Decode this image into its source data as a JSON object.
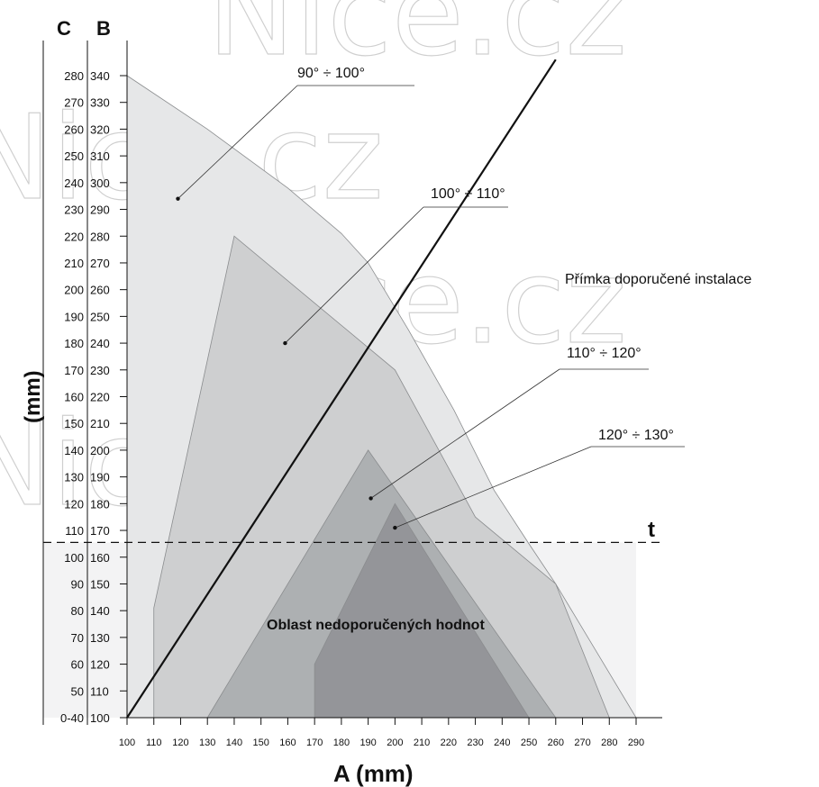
{
  "watermark": "Nice.cz",
  "chart_data": {
    "type": "area",
    "xlabel": "A (mm)",
    "ylabel": "(mm)",
    "axis_b_label": "B",
    "axis_c_label": "C",
    "x_ticks": [
      100,
      110,
      120,
      130,
      140,
      150,
      160,
      170,
      180,
      190,
      200,
      210,
      220,
      230,
      240,
      250,
      260,
      270,
      280,
      290
    ],
    "xlim": [
      100,
      290
    ],
    "b_ticks": [
      100,
      110,
      120,
      130,
      140,
      150,
      160,
      170,
      180,
      190,
      200,
      210,
      220,
      230,
      240,
      250,
      260,
      270,
      280,
      290,
      300,
      310,
      320,
      330,
      340
    ],
    "c_ticks": [
      "0-40",
      "50",
      "60",
      "70",
      "80",
      "90",
      "100",
      "110",
      "120",
      "130",
      "140",
      "150",
      "160",
      "170",
      "180",
      "190",
      "200",
      "210",
      "220",
      "230",
      "240",
      "250",
      "260",
      "270",
      "280"
    ],
    "ylim_b": [
      100,
      340
    ],
    "series": [
      {
        "name": "90° ÷ 100°",
        "color": "#e6e7e8",
        "points": [
          [
            100,
            340
          ],
          [
            130,
            320
          ],
          [
            160,
            298
          ],
          [
            180,
            281
          ],
          [
            190,
            270
          ],
          [
            205,
            245
          ],
          [
            222,
            215
          ],
          [
            237,
            185
          ],
          [
            250,
            165
          ],
          [
            260,
            150
          ],
          [
            275,
            125
          ],
          [
            290,
            100
          ],
          [
            100,
            100
          ]
        ]
      },
      {
        "name": "100° ÷ 110°",
        "color": "#c9cacb",
        "points": [
          [
            110,
            100
          ],
          [
            110,
            141
          ],
          [
            140,
            280
          ],
          [
            170,
            255
          ],
          [
            200,
            230
          ],
          [
            230,
            175
          ],
          [
            260,
            150
          ],
          [
            280,
            100
          ]
        ]
      },
      {
        "name": "110° ÷ 120°",
        "color": "#a7aaad",
        "points": [
          [
            130,
            100
          ],
          [
            190,
            200
          ],
          [
            260,
            100
          ]
        ]
      },
      {
        "name": "120° ÷ 130°",
        "color": "#8f9194",
        "points": [
          [
            170,
            100
          ],
          [
            170,
            120
          ],
          [
            200,
            180
          ],
          [
            250,
            100
          ]
        ]
      }
    ],
    "recommended_line": {
      "label": "Přímka doporučené instalace",
      "from": [
        100,
        100
      ],
      "to": [
        260,
        346
      ]
    },
    "threshold": {
      "label": "t",
      "b": 165.5
    },
    "region_label": "Oblast nedoporučených hodnot",
    "annotations": [
      {
        "text": "90° ÷ 100°",
        "series": 0,
        "point": [
          119,
          294
        ]
      },
      {
        "text": "100° ÷ 110°",
        "series": 1,
        "point": [
          159,
          240
        ]
      },
      {
        "text": "110° ÷ 120°",
        "series": 2,
        "point": [
          191,
          182
        ]
      },
      {
        "text": "120° ÷ 130°",
        "series": 3,
        "point": [
          200,
          171
        ]
      }
    ]
  }
}
